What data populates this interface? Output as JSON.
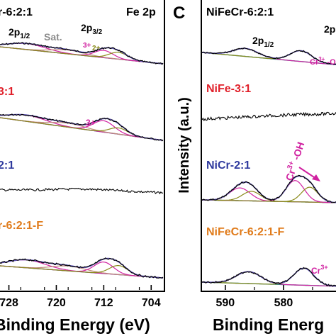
{
  "figure": {
    "panel_c_letter": "C"
  },
  "chart_data": [
    {
      "type": "line",
      "panel": "b",
      "title": "Fe 2p",
      "xlabel": "Binding Energy (eV)",
      "ylabel": "",
      "x_axis_reversed": true,
      "xlim": [
        729.5,
        702
      ],
      "xticks": [
        728,
        720,
        712,
        704
      ],
      "peak_labels": [
        "2p1/2",
        "Sat.",
        "3+",
        "2+",
        "2p3/2"
      ],
      "peak_label_parts": {
        "p12_main": "2p",
        "p12_sub": "1/2",
        "sat": "Sat.",
        "ox3": "3+",
        "ox2": "2+",
        "p32_main": "2p",
        "p32_sub": "3/2",
        "ox3_b": "3+"
      },
      "series": [
        {
          "name": "NiFeCr-6:2:1",
          "label": "r-6:2:1",
          "color": "#000000"
        },
        {
          "name": "NiFe-3:1",
          "label": "3:1",
          "color": "#e0202a"
        },
        {
          "name": "NiCr-2:1",
          "label": "2:1",
          "color": "#2f3a9e"
        },
        {
          "name": "NiFeCr-6:2:1-F",
          "label": "r-6:2:1-F",
          "color": "#e07b1a"
        }
      ],
      "components": {
        "envelope": "#5a4fb0",
        "background": "#2a8a8a",
        "fe3": "#d020a0",
        "fe2": "#8a8a1a",
        "sat": "#c08a7a"
      }
    },
    {
      "type": "line",
      "panel": "c",
      "title": "",
      "xlabel": "Binding Energ",
      "ylabel": "Intensity (a.u.)",
      "x_axis_reversed": true,
      "xlim": [
        594,
        570
      ],
      "xticks": [
        590,
        580
      ],
      "peak_label_parts": {
        "p12_main": "2p",
        "p12_sub": "1/2",
        "p32_main": "2p",
        "cr3_top": "Cr",
        "cr3_top_sup": "3+",
        "cr3_top_tail": " -O",
        "cr3oh": "Cr",
        "cr3oh_sup": "3+",
        "cr3oh_tail": " -OH",
        "cr3_bot": "Cr",
        "cr3_bot_sup": "3+"
      },
      "series": [
        {
          "name": "NiFeCr-6:2:1",
          "label": "NiFeCr-6:2:1",
          "color": "#000000"
        },
        {
          "name": "NiFe-3:1",
          "label": "NiFe-3:1",
          "color": "#e0202a"
        },
        {
          "name": "NiCr-2:1",
          "label": "NiCr-2:1",
          "color": "#2f3a9e"
        },
        {
          "name": "NiFeCr-6:2:1-F",
          "label": "NiFeCr-6:2:1-F",
          "color": "#e07b1a"
        }
      ]
    }
  ]
}
